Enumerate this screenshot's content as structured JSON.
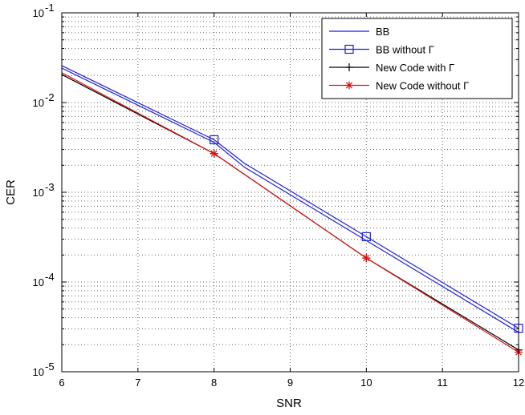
{
  "chart_data": {
    "type": "line",
    "title": "",
    "xlabel": "SNR",
    "ylabel": "CER",
    "xlim": [
      6,
      12
    ],
    "ylim": [
      1e-05,
      0.1
    ],
    "yscale": "log",
    "grid": true,
    "legend_position": "top-right",
    "x_ticks": [
      "6",
      "7",
      "8",
      "9",
      "10",
      "11",
      "12"
    ],
    "y_ticks": [
      {
        "base": "10",
        "exp": "-5"
      },
      {
        "base": "10",
        "exp": "-4"
      },
      {
        "base": "10",
        "exp": "-3"
      },
      {
        "base": "10",
        "exp": "-2"
      },
      {
        "base": "10",
        "exp": "-1"
      }
    ],
    "series": [
      {
        "name": "BB",
        "color": "#1f1fd8",
        "marker": "none",
        "x": [
          6,
          8,
          8.4,
          10,
          12
        ],
        "y": [
          0.0242,
          0.0036,
          0.0019,
          0.00029,
          2.75e-05
        ]
      },
      {
        "name": "BB without Γ",
        "color": "#1f1fd8",
        "marker": "square",
        "x": [
          6,
          8,
          8.4,
          10,
          12
        ],
        "y": [
          0.0258,
          0.00385,
          0.0021,
          0.00032,
          3.05e-05
        ]
      },
      {
        "name": "New Code with Γ",
        "color": "#000000",
        "marker": "plus",
        "x": [
          6,
          8,
          10,
          12
        ],
        "y": [
          0.0205,
          0.0027,
          0.000185,
          1.75e-05
        ]
      },
      {
        "name": "New Code without Γ",
        "color": "#e01010",
        "marker": "star",
        "x": [
          6,
          8,
          10,
          12
        ],
        "y": [
          0.0215,
          0.0027,
          0.000185,
          1.65e-05
        ]
      }
    ]
  }
}
